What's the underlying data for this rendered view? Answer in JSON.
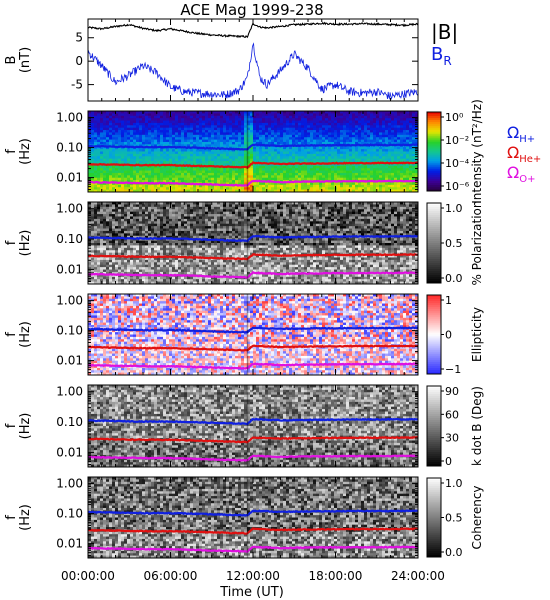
{
  "title": "ACE Mag 1999-238",
  "legend_top": {
    "total": "|B|",
    "radial_main": "B",
    "radial_sub": "R"
  },
  "legend_cyclotron": [
    {
      "main": "Ω",
      "sub": "H+",
      "color": "#1020e0"
    },
    {
      "main": "Ω",
      "sub": "He+",
      "color": "#e01010"
    },
    {
      "main": "Ω",
      "sub": "O+",
      "color": "#e010e0"
    }
  ],
  "x_axis": {
    "label": "Time (UT)",
    "ticks": [
      "00:00:00",
      "06:00:00",
      "12:00:00",
      "18:00:00",
      "24:00:00"
    ],
    "range_hours": [
      0,
      24
    ]
  },
  "chart_data": [
    {
      "type": "line",
      "panel": "B",
      "ylabel_main": "B",
      "ylabel_unit": "(nT)",
      "ylim": [
        -8.5,
        9
      ],
      "yticks": [
        "5",
        "0",
        "-5"
      ],
      "ytick_values": [
        5,
        0,
        -5
      ],
      "series": [
        {
          "name": "|B|",
          "color": "#000000",
          "x": [
            0,
            1,
            2,
            3,
            4,
            5,
            6,
            7,
            8,
            9,
            10,
            11,
            11.6,
            12,
            12.5,
            13,
            14,
            15,
            16,
            17,
            18,
            19,
            20,
            21,
            22,
            23,
            24
          ],
          "y": [
            7.2,
            6.9,
            7.4,
            7.8,
            7.0,
            6.5,
            6.9,
            6.4,
            5.9,
            5.6,
            5.4,
            5.3,
            5.2,
            8.0,
            7.3,
            7.1,
            7.4,
            7.8,
            7.9,
            8.1,
            7.9,
            7.9,
            8.0,
            7.9,
            7.8,
            7.7,
            7.9
          ]
        },
        {
          "name": "B R",
          "color": "#1020e0",
          "x": [
            0,
            1,
            2,
            3,
            4,
            5,
            6,
            7,
            8,
            9,
            10,
            11,
            11.6,
            12,
            12.5,
            13,
            14,
            15,
            16,
            17,
            18,
            19,
            20,
            21,
            22,
            23,
            24
          ],
          "y": [
            2.0,
            -1.0,
            -4.5,
            -3.0,
            -1.0,
            -2.5,
            -5.5,
            -6.5,
            -6.8,
            -7.0,
            -7.2,
            -6.2,
            -3.5,
            4.0,
            -3.5,
            -5.0,
            -2.0,
            1.5,
            -1.5,
            -6.0,
            -5.0,
            -6.5,
            -6.8,
            -6.5,
            -7.5,
            -7.0,
            -6.5
          ]
        }
      ]
    },
    {
      "type": "heatmap",
      "panel": "intensity",
      "ylabel_main": "f",
      "ylabel_unit": "(Hz)",
      "yticks": [
        "1.00",
        "0.10",
        "0.01"
      ],
      "colorbar": {
        "label": "Intensity (nT²/Hz)",
        "ticks": [
          "10⁰",
          "10⁻²",
          "10⁻⁴",
          "10⁻⁶"
        ],
        "scale": "rainbow",
        "range": [
          -6.5,
          0.5
        ]
      }
    },
    {
      "type": "heatmap",
      "panel": "polarization",
      "ylabel_main": "f",
      "ylabel_unit": "(Hz)",
      "yticks": [
        "1.00",
        "0.10",
        "0.01"
      ],
      "colorbar": {
        "label": "% Polarization",
        "ticks": [
          "1.0",
          "0.5",
          "0.0"
        ],
        "scale": "gray",
        "range": [
          0,
          1
        ]
      }
    },
    {
      "type": "heatmap",
      "panel": "ellipticity",
      "ylabel_main": "f",
      "ylabel_unit": "(Hz)",
      "yticks": [
        "1.00",
        "0.10",
        "0.01"
      ],
      "colorbar": {
        "label": "Ellipticity",
        "ticks": [
          "1",
          "0",
          "−1"
        ],
        "scale": "bwr",
        "range": [
          -1,
          1
        ]
      }
    },
    {
      "type": "heatmap",
      "panel": "kdotb",
      "ylabel_main": "f",
      "ylabel_unit": "(Hz)",
      "yticks": [
        "1.00",
        "0.10",
        "0.01"
      ],
      "colorbar": {
        "label": "k dot B (Deg)",
        "ticks": [
          "90",
          "60",
          "30",
          "0"
        ],
        "scale": "gray",
        "range": [
          0,
          90
        ]
      }
    },
    {
      "type": "heatmap",
      "panel": "coherency",
      "ylabel_main": "f",
      "ylabel_unit": "(Hz)",
      "yticks": [
        "1.00",
        "0.10",
        "0.01"
      ],
      "colorbar": {
        "label": "Coherency",
        "ticks": [
          "1.0",
          "0.5",
          "0.0"
        ],
        "scale": "gray",
        "range": [
          0,
          1
        ]
      }
    }
  ],
  "cyclotron_lines": [
    {
      "name": "Ω H+",
      "color": "#1020e0",
      "x": [
        0,
        2,
        4,
        6,
        8,
        10,
        11.6,
        12,
        14,
        16,
        18,
        20,
        22,
        24
      ],
      "y": [
        0.112,
        0.108,
        0.104,
        0.104,
        0.098,
        0.091,
        0.088,
        0.125,
        0.114,
        0.118,
        0.12,
        0.122,
        0.122,
        0.124
      ]
    },
    {
      "name": "Ω He+",
      "color": "#e01010",
      "x": [
        0,
        2,
        4,
        6,
        8,
        10,
        11.6,
        12,
        14,
        16,
        18,
        20,
        22,
        24
      ],
      "y": [
        0.028,
        0.027,
        0.026,
        0.026,
        0.0245,
        0.023,
        0.022,
        0.031,
        0.0285,
        0.0295,
        0.03,
        0.0305,
        0.0305,
        0.031
      ]
    },
    {
      "name": "Ω O+",
      "color": "#e010e0",
      "x": [
        0,
        2,
        4,
        6,
        8,
        10,
        11.6,
        12,
        14,
        16,
        18,
        20,
        22,
        24
      ],
      "y": [
        0.007,
        0.0068,
        0.0065,
        0.0065,
        0.0061,
        0.0057,
        0.0055,
        0.0078,
        0.0071,
        0.0074,
        0.0075,
        0.0076,
        0.0076,
        0.0078
      ]
    }
  ]
}
